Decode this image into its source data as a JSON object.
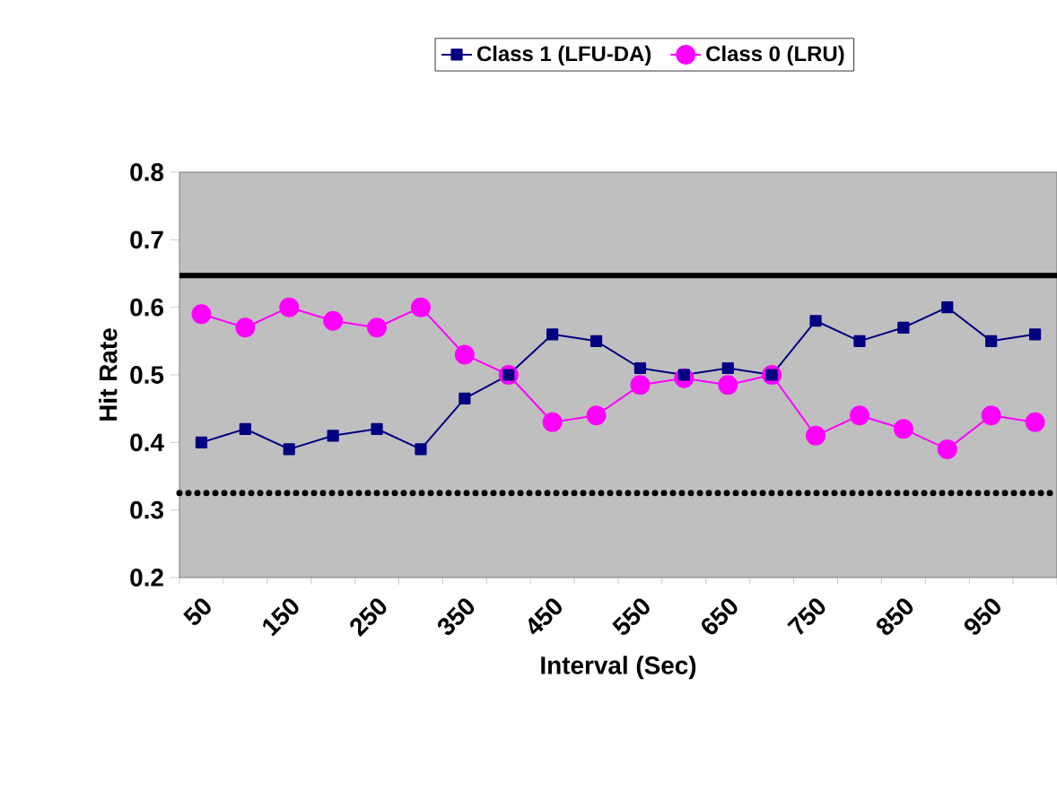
{
  "chart_data": {
    "type": "line",
    "xlabel": "Interval (Sec)",
    "ylabel": "Hit Rate",
    "categories": [
      "50",
      null,
      "150",
      null,
      "250",
      null,
      "350",
      null,
      "450",
      null,
      "550",
      null,
      "650",
      null,
      "750",
      null,
      "850",
      null,
      "950",
      null
    ],
    "series": [
      {
        "name": "Class 1 (LFU-DA)",
        "color": "#000080",
        "marker": "square",
        "values": [
          0.4,
          0.42,
          0.39,
          0.41,
          0.42,
          0.39,
          0.465,
          0.5,
          0.56,
          0.55,
          0.51,
          0.5,
          0.51,
          0.5,
          0.58,
          0.55,
          0.57,
          0.6,
          0.55,
          0.56
        ]
      },
      {
        "name": "Class 0 (LRU)",
        "color": "#ff00ff",
        "marker": "circle",
        "values": [
          0.59,
          0.57,
          0.6,
          0.58,
          0.57,
          0.6,
          0.53,
          0.5,
          0.43,
          0.44,
          0.485,
          0.495,
          0.485,
          0.5,
          0.41,
          0.44,
          0.42,
          0.39,
          0.44,
          0.43
        ]
      }
    ],
    "ylim": [
      0.2,
      0.8
    ],
    "yticks": [
      0.2,
      0.3,
      0.4,
      0.5,
      0.6,
      0.7,
      0.8
    ],
    "ref_lines": [
      {
        "axis": "y",
        "value": 0.647,
        "color": "#000000",
        "line_style": "solid"
      },
      {
        "axis": "y",
        "value": 0.325,
        "color": "#000000",
        "line_style": "dotted"
      }
    ],
    "legend": "top",
    "grid": false
  }
}
